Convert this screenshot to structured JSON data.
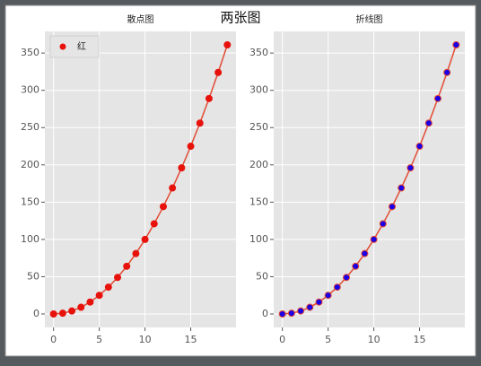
{
  "title": "两张图",
  "chart_data": [
    {
      "type": "scatter",
      "title": "散点图",
      "x": [
        0,
        1,
        2,
        3,
        4,
        5,
        6,
        7,
        8,
        9,
        10,
        11,
        12,
        13,
        14,
        15,
        16,
        17,
        18,
        19
      ],
      "series": [
        {
          "name": "红",
          "color": "#e8120c",
          "values": [
            0,
            1,
            4,
            9,
            16,
            25,
            36,
            49,
            64,
            81,
            100,
            121,
            144,
            169,
            196,
            225,
            256,
            289,
            324,
            361
          ]
        }
      ],
      "line_color": "#e24a33",
      "xlim": [
        -0.95,
        19.95
      ],
      "ylim": [
        -18.05,
        379.05
      ],
      "xticks": [
        0,
        5,
        10,
        15
      ],
      "yticks": [
        0,
        50,
        100,
        150,
        200,
        250,
        300,
        350
      ],
      "grid": true,
      "legend": "upper left"
    },
    {
      "type": "line",
      "title": "折线图",
      "x": [
        0,
        1,
        2,
        3,
        4,
        5,
        6,
        7,
        8,
        9,
        10,
        11,
        12,
        13,
        14,
        15,
        16,
        17,
        18,
        19
      ],
      "series": [
        {
          "color": "#e24a33",
          "values": [
            0,
            1,
            4,
            9,
            16,
            25,
            36,
            49,
            64,
            81,
            100,
            121,
            144,
            169,
            196,
            225,
            256,
            289,
            324,
            361
          ]
        }
      ],
      "marker_color": "#1a00e6",
      "xlim": [
        -0.95,
        19.95
      ],
      "ylim": [
        -18.05,
        379.05
      ],
      "xticks": [
        0,
        5,
        10,
        15
      ],
      "yticks": [
        0,
        50,
        100,
        150,
        200,
        250,
        300,
        350
      ],
      "grid": true
    }
  ]
}
